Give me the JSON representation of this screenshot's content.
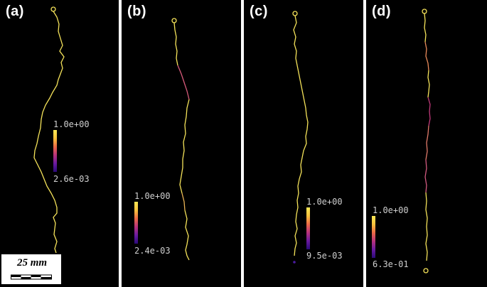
{
  "panels": [
    {
      "label": "(a)",
      "colorbar": {
        "max_label": "1.0e+00",
        "min_label": "2.6e-03"
      }
    },
    {
      "label": "(b)",
      "colorbar": {
        "max_label": "1.0e+00",
        "min_label": "2.4e-03"
      }
    },
    {
      "label": "(c)",
      "colorbar": {
        "max_label": "1.0e+00",
        "min_label": "9.5e-03"
      }
    },
    {
      "label": "(d)",
      "colorbar": {
        "max_label": "1.0e+00",
        "min_label": "6.3e-01"
      }
    }
  ],
  "scalebar": {
    "label": "25 mm"
  },
  "colors": {
    "background": "#000000",
    "track_high": "#f5e35a",
    "track_mid": "#d65a7a",
    "colormap": [
      "#2a0a7a",
      "#6a1aa0",
      "#b8327c",
      "#ec6a45",
      "#f9c23c",
      "#fbe855"
    ]
  }
}
